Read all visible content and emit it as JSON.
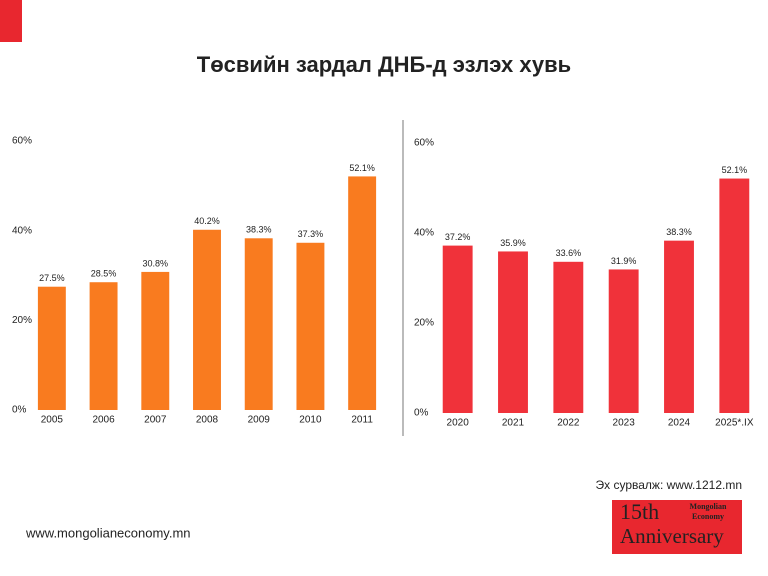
{
  "title": "Төсвийн зардал ДНБ-д эзлэх хувь",
  "source": "Эх сурвалж: www.1212.mn",
  "website": "www.mongolianeconomy.mn",
  "logo": {
    "number": "15th",
    "text": "Anniversary",
    "brand_line1": "Mongolian",
    "brand_line2": "Economy"
  },
  "chart_data": [
    {
      "type": "bar",
      "categories": [
        "2005",
        "2006",
        "2007",
        "2008",
        "2009",
        "2010",
        "2011"
      ],
      "values": [
        27.5,
        28.5,
        30.8,
        40.2,
        38.3,
        37.3,
        52.1
      ],
      "value_labels": [
        "27.5%",
        "28.5%",
        "30.8%",
        "40.2%",
        "38.3%",
        "37.3%",
        "52.1%"
      ],
      "color": "#f97b1f",
      "ylim": [
        0,
        60
      ],
      "yticks": [
        {
          "value": 0,
          "label": "0%"
        },
        {
          "value": 20,
          "label": "20%"
        },
        {
          "value": 40,
          "label": "40%"
        },
        {
          "value": 60,
          "label": "60%"
        }
      ],
      "grid": false
    },
    {
      "type": "bar",
      "categories": [
        "2020",
        "2021",
        "2022",
        "2023",
        "2024",
        "2025*.IX"
      ],
      "values": [
        37.2,
        35.9,
        33.6,
        31.9,
        38.3,
        52.1
      ],
      "value_labels": [
        "37.2%",
        "35.9%",
        "33.6%",
        "31.9%",
        "38.3%",
        "52.1%"
      ],
      "color": "#f0323a",
      "ylim": [
        0,
        60
      ],
      "yticks": [
        {
          "value": 0,
          "label": "0%"
        },
        {
          "value": 20,
          "label": "20%"
        },
        {
          "value": 40,
          "label": "40%"
        },
        {
          "value": 60,
          "label": "60%"
        }
      ],
      "grid": false
    }
  ]
}
